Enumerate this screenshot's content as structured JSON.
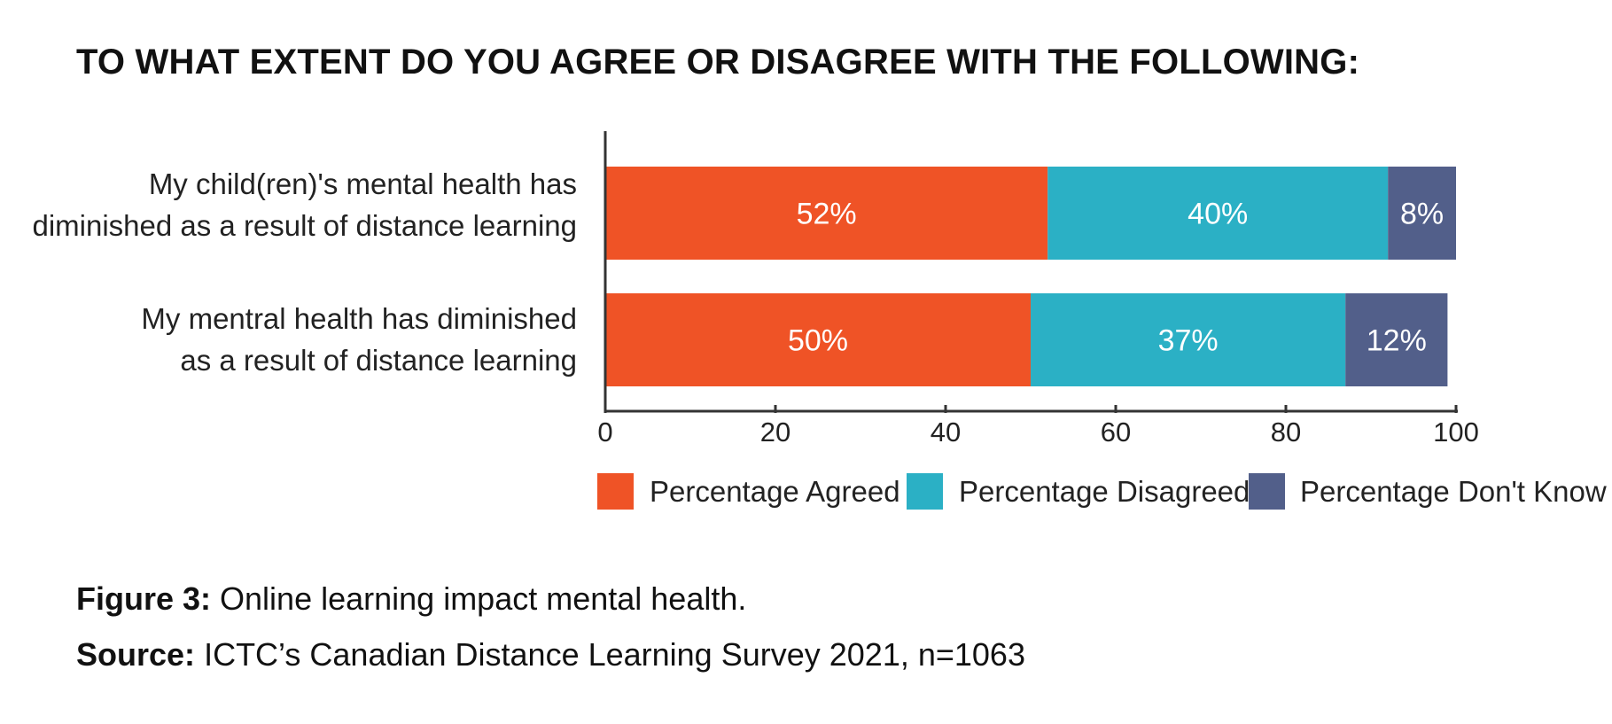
{
  "title": "TO WHAT EXTENT DO YOU AGREE OR DISAGREE WITH THE FOLLOWING:",
  "caption": {
    "figure_label": "Figure 3:",
    "figure_text": "Online learning impact mental health.",
    "source_label": "Source:",
    "source_text": "ICTC’s Canadian Distance Learning Survey 2021, n=1063"
  },
  "chart_data": {
    "type": "bar",
    "orientation": "horizontal",
    "stacked": true,
    "categories": [
      [
        "My child(ren)'s mental health has",
        "diminished as a result of distance learning"
      ],
      [
        "My mentral health has diminished",
        "as a result of distance learning"
      ]
    ],
    "series": [
      {
        "name": "Percentage Agreed",
        "color": "#EF5326",
        "values": [
          52,
          50
        ],
        "labels": [
          "52%",
          "50%"
        ]
      },
      {
        "name": "Percentage Disagreed",
        "color": "#2BB0C5",
        "values": [
          40,
          37
        ],
        "labels": [
          "40%",
          "37%"
        ]
      },
      {
        "name": "Percentage Don't Know",
        "color": "#525F8A",
        "values": [
          8,
          12
        ],
        "labels": [
          "8%",
          "12%"
        ]
      }
    ],
    "xlim": [
      0,
      100
    ],
    "xticks": [
      0,
      20,
      40,
      60,
      80,
      100
    ],
    "grid": false,
    "legend_position": "bottom"
  }
}
